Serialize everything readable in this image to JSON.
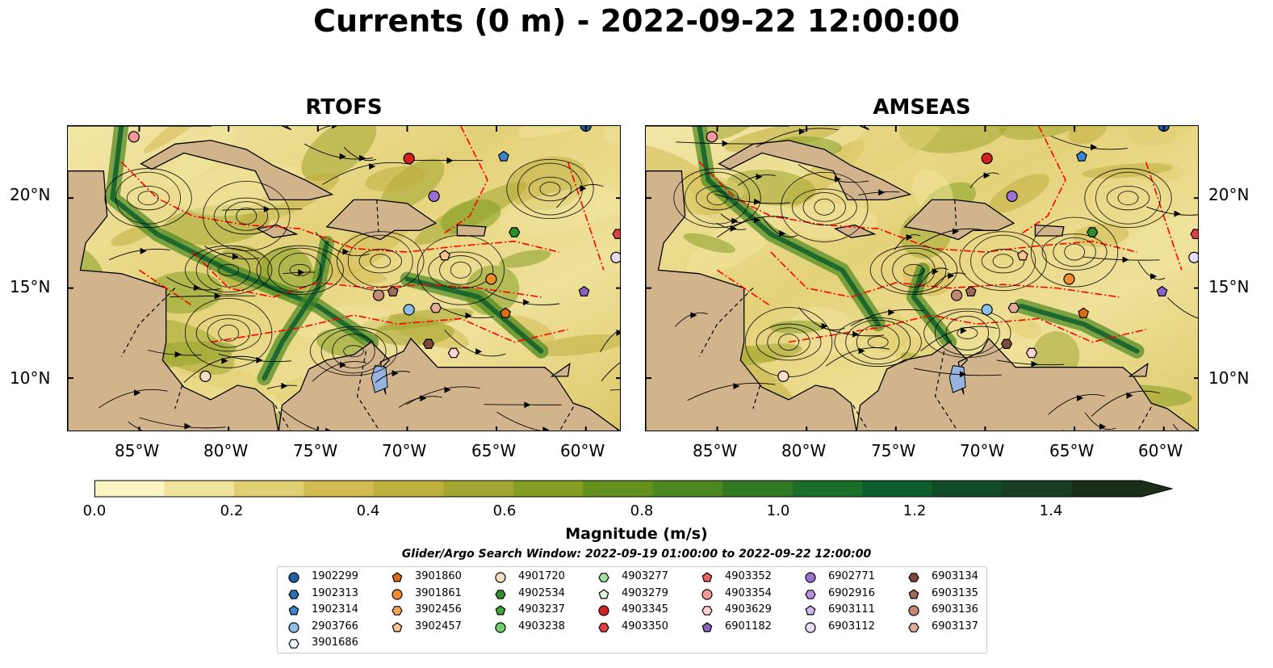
{
  "title": "Currents (0 m) - 2022-09-22 12:00:00",
  "panels": [
    {
      "title": "RTOFS"
    },
    {
      "title": "AMSEAS"
    }
  ],
  "axes": {
    "lat_labels": [
      "20°N",
      "15°N",
      "10°N"
    ],
    "lon_labels": [
      "85°W",
      "80°W",
      "75°W",
      "70°W",
      "65°W",
      "60°W"
    ],
    "lon_range": [
      -89,
      -58
    ],
    "lat_range": [
      7,
      24
    ]
  },
  "colorbar": {
    "label": "Magnitude (m/s)",
    "ticks": [
      "0.0",
      "0.2",
      "0.4",
      "0.6",
      "0.8",
      "1.0",
      "1.2",
      "1.4"
    ],
    "range": [
      0,
      1.5
    ],
    "extend": "max",
    "colors": [
      "#fbf5c4",
      "#f0e39c",
      "#e2cf72",
      "#d2bc52",
      "#bfaf3f",
      "#a3a630",
      "#849e22",
      "#64911e",
      "#4c8720",
      "#317a24",
      "#1a6e2a",
      "#0d5e2c",
      "#104c28",
      "#173d22",
      "#1a2f1a"
    ]
  },
  "search_window": "Glider/Argo Search Window: 2022-09-19 01:00:00 to 2022-09-22 12:00:00",
  "colors": {
    "land": "#d2b48c",
    "ocean_masked": "#96b4df",
    "eez_lines": "#ff0000"
  },
  "legend": [
    {
      "id": "1902299",
      "marker": "circle",
      "color": "#1f5fa8"
    },
    {
      "id": "1902313",
      "marker": "hexagon",
      "color": "#2b6db3"
    },
    {
      "id": "1902314",
      "marker": "pentagon",
      "color": "#3b86d0"
    },
    {
      "id": "2903766",
      "marker": "circle",
      "color": "#8cc0ea"
    },
    {
      "id": "3901686",
      "marker": "hexagon",
      "color": "#e8f3fb"
    },
    {
      "id": "3901860",
      "marker": "pentagon",
      "color": "#e06a10"
    },
    {
      "id": "3901861",
      "marker": "circle",
      "color": "#f28c2e"
    },
    {
      "id": "3902456",
      "marker": "hexagon",
      "color": "#f7a456"
    },
    {
      "id": "3902457",
      "marker": "pentagon",
      "color": "#fbc48e"
    },
    {
      "id": "4901720",
      "marker": "circle",
      "color": "#fde0c4"
    },
    {
      "id": "4902534",
      "marker": "hexagon",
      "color": "#2c8f2c"
    },
    {
      "id": "4903237",
      "marker": "pentagon",
      "color": "#3aa83a"
    },
    {
      "id": "4903238",
      "marker": "circle",
      "color": "#6ccf6c"
    },
    {
      "id": "4903277",
      "marker": "hexagon",
      "color": "#a6e3a0"
    },
    {
      "id": "4903279",
      "marker": "pentagon",
      "color": "#dff6d8"
    },
    {
      "id": "4903345",
      "marker": "circle",
      "color": "#d42020"
    },
    {
      "id": "4903350",
      "marker": "hexagon",
      "color": "#e04040"
    },
    {
      "id": "4903352",
      "marker": "pentagon",
      "color": "#ec6060"
    },
    {
      "id": "4903354",
      "marker": "circle",
      "color": "#f49a9a"
    },
    {
      "id": "4903629",
      "marker": "hexagon",
      "color": "#fcd2d2"
    },
    {
      "id": "6901182",
      "marker": "pentagon",
      "color": "#8a62c4"
    },
    {
      "id": "6902771",
      "marker": "circle",
      "color": "#9c72d0"
    },
    {
      "id": "6902916",
      "marker": "hexagon",
      "color": "#b592df"
    },
    {
      "id": "6903111",
      "marker": "pentagon",
      "color": "#d0b8ec"
    },
    {
      "id": "6903112",
      "marker": "circle",
      "color": "#e8dcf6"
    },
    {
      "id": "6903134",
      "marker": "hexagon",
      "color": "#7a4a3c"
    },
    {
      "id": "6903135",
      "marker": "pentagon",
      "color": "#a06a5a"
    },
    {
      "id": "6903136",
      "marker": "circle",
      "color": "#c48a78"
    },
    {
      "id": "6903137",
      "marker": "hexagon",
      "color": "#e2ac9a"
    }
  ],
  "float_positions": [
    {
      "id": "1902299",
      "lon": -60.0,
      "lat": 24.0
    },
    {
      "id": "1902314",
      "lon": -64.6,
      "lat": 22.3
    },
    {
      "id": "2903766",
      "lon": -69.9,
      "lat": 13.8
    },
    {
      "id": "3901860",
      "lon": -64.5,
      "lat": 13.6
    },
    {
      "id": "3901861",
      "lon": -65.3,
      "lat": 15.5
    },
    {
      "id": "3902457",
      "lon": -67.9,
      "lat": 16.8
    },
    {
      "id": "4901720",
      "lon": -81.3,
      "lat": 10.1
    },
    {
      "id": "4902534",
      "lon": -64.0,
      "lat": 18.1
    },
    {
      "id": "4903345",
      "lon": -69.9,
      "lat": 22.2
    },
    {
      "id": "4903350",
      "lon": -58.2,
      "lat": 18.0
    },
    {
      "id": "4903354",
      "lon": -85.3,
      "lat": 23.4
    },
    {
      "id": "4903629",
      "lon": -67.4,
      "lat": 11.4
    },
    {
      "id": "6901182",
      "lon": -60.1,
      "lat": 14.8
    },
    {
      "id": "6902771",
      "lon": -68.5,
      "lat": 20.1
    },
    {
      "id": "6903112",
      "lon": -58.3,
      "lat": 16.7
    },
    {
      "id": "6903134",
      "lon": -68.8,
      "lat": 11.9
    },
    {
      "id": "6903135",
      "lon": -70.8,
      "lat": 14.8
    },
    {
      "id": "6903136",
      "lon": -71.6,
      "lat": 14.6
    },
    {
      "id": "6903137",
      "lon": -68.4,
      "lat": 13.9
    }
  ]
}
